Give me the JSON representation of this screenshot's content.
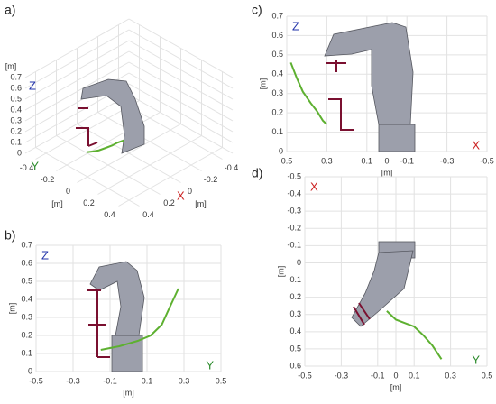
{
  "chart_data": [
    {
      "type": "line3d",
      "label": "a)",
      "xname": "X",
      "yname": "Y",
      "zname": "Z",
      "xname_color": "#cc2222",
      "yname_color": "#2a8a2a",
      "zname_color": "#2233aa",
      "xunit": "[m]",
      "yunit": "[m]",
      "zunit": "[m]",
      "x": [
        0.3,
        0.27,
        0.24,
        0.2,
        0.16,
        0.13,
        0.1
      ],
      "y": [
        -0.1,
        -0.08,
        -0.05,
        -0.03,
        0,
        0.02,
        0.05
      ],
      "z": [
        0.12,
        0.12,
        0.13,
        0.14,
        0.16,
        0.18,
        0.2
      ],
      "color": "#5db030",
      "xlim": [
        -0.5,
        0.5
      ],
      "ylim": [
        -0.5,
        0.5
      ],
      "zlim": [
        0,
        0.7
      ],
      "xticks": [
        -0.4,
        -0.2,
        0,
        0.2,
        0.4
      ],
      "yticks": [
        -0.4,
        -0.2,
        0,
        0.2,
        0.4
      ],
      "zticks": [
        0,
        0.1,
        0.2,
        0.3,
        0.4,
        0.5,
        0.6,
        0.7
      ],
      "grid": true
    },
    {
      "type": "line",
      "label": "b)",
      "xname": "Y",
      "yname": "Z",
      "xname_color": "#2a8a2a",
      "yname_color": "#2233aa",
      "xunit": "[m]",
      "yunit": "[m]",
      "x": [
        -0.15,
        -0.05,
        0.05,
        0.12,
        0.18,
        0.22,
        0.27
      ],
      "series": [
        {
          "color": "#5db030",
          "values": [
            0.12,
            0.14,
            0.17,
            0.2,
            0.26,
            0.35,
            0.46
          ]
        }
      ],
      "xlim": [
        -0.5,
        0.5
      ],
      "ylim": [
        0,
        0.7
      ],
      "xticks": [
        -0.5,
        -0.3,
        -0.1,
        0.1,
        0.3,
        0.5
      ],
      "yticks": [
        0,
        0.1,
        0.2,
        0.3,
        0.4,
        0.5,
        0.6,
        0.7
      ],
      "grid": true
    },
    {
      "type": "line",
      "label": "c)",
      "xname": "X",
      "yname": "Z",
      "xname_color": "#cc2222",
      "yname_color": "#2233aa",
      "xunit": "[m]",
      "yunit": "[m]",
      "x": [
        0.48,
        0.45,
        0.42,
        0.38,
        0.35,
        0.32,
        0.3
      ],
      "series": [
        {
          "color": "#5db030",
          "values": [
            0.46,
            0.38,
            0.31,
            0.25,
            0.21,
            0.16,
            0.14
          ]
        }
      ],
      "xlim": [
        0.5,
        -0.5
      ],
      "ylim": [
        0,
        0.7
      ],
      "xticks": [
        0.5,
        0.3,
        0.1,
        0,
        -0.1,
        -0.3,
        -0.5
      ],
      "yticks": [
        0,
        0.1,
        0.2,
        0.3,
        0.4,
        0.5,
        0.6,
        0.7
      ],
      "grid": true
    },
    {
      "type": "line",
      "label": "d)",
      "xname": "Y",
      "yname": "X",
      "xname_color": "#2a8a2a",
      "yname_color": "#cc2222",
      "xunit": "[m]",
      "yunit": "[m]",
      "x": [
        -0.05,
        0,
        0.05,
        0.1,
        0.15,
        0.2,
        0.25
      ],
      "series": [
        {
          "color": "#5db030",
          "values": [
            0.28,
            0.33,
            0.35,
            0.37,
            0.42,
            0.48,
            0.56
          ]
        }
      ],
      "xlim": [
        -0.5,
        0.5
      ],
      "ylim": [
        0.6,
        -0.5
      ],
      "xticks": [
        -0.5,
        -0.3,
        -0.1,
        0,
        0.1,
        0.3,
        0.5
      ],
      "yticks": [
        -0.5,
        -0.4,
        -0.3,
        -0.2,
        -0.1,
        0,
        0.1,
        0.2,
        0.3,
        0.4,
        0.5,
        0.6
      ],
      "grid": true
    }
  ]
}
